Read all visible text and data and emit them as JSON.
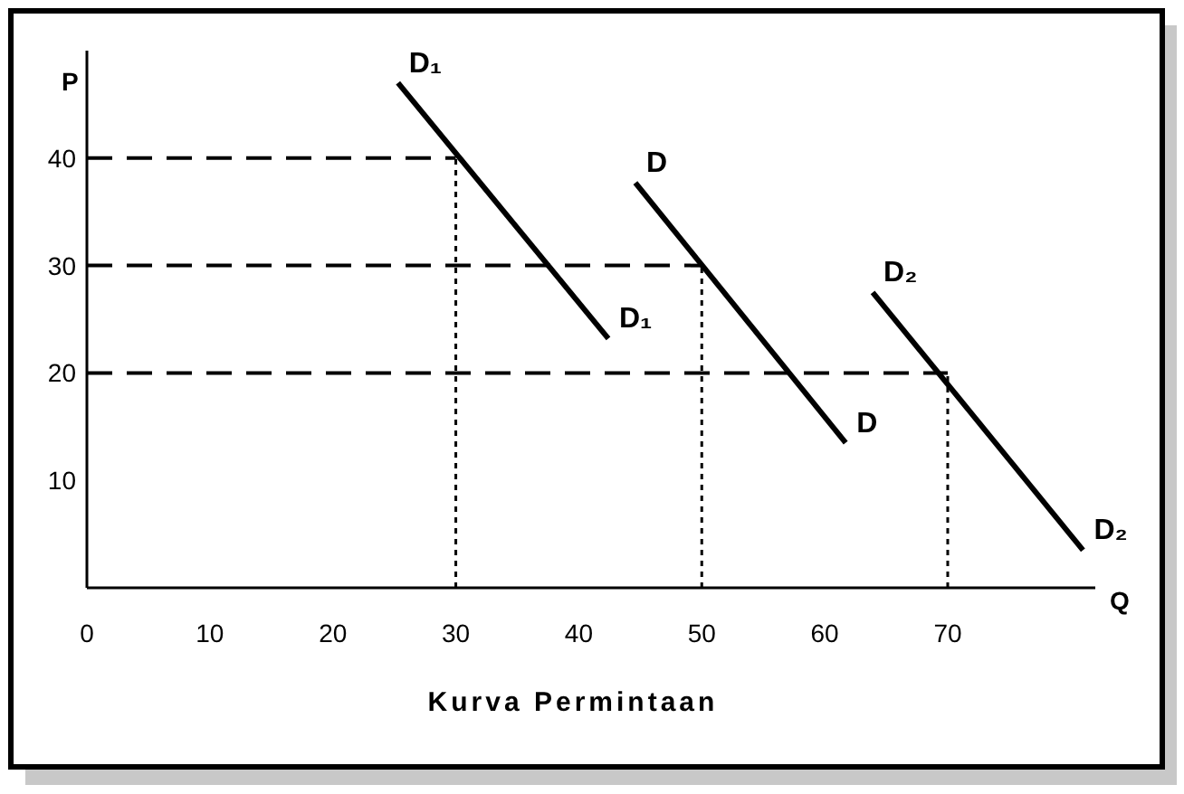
{
  "chart_data": {
    "type": "line",
    "title": "Kurva Permintaan",
    "xlabel": "Q",
    "ylabel": "P",
    "xlim": [
      0,
      82
    ],
    "ylim": [
      0,
      50
    ],
    "xticks": [
      0,
      10,
      20,
      30,
      40,
      50,
      60,
      70
    ],
    "yticks": [
      10,
      20,
      30,
      40
    ],
    "grid": false,
    "marker": "none",
    "series": [
      {
        "color": "#000000",
        "x": [
          25.3,
          42.4
        ],
        "values": [
          47,
          23.2
        ]
      },
      {
        "color": "#000000",
        "x": [
          44.6,
          61.7
        ],
        "values": [
          37.7,
          13.5
        ]
      },
      {
        "color": "#000000",
        "x": [
          63.9,
          81
        ],
        "values": [
          27.5,
          3.5
        ]
      },
      {
        "color": "#000000",
        "line_style": "dashed",
        "x": [
          0,
          30
        ],
        "values": [
          40,
          40
        ]
      },
      {
        "color": "#000000",
        "line_style": "dashed",
        "x": [
          0,
          50
        ],
        "values": [
          30,
          30
        ]
      },
      {
        "color": "#000000",
        "line_style": "dashed",
        "x": [
          0,
          70
        ],
        "values": [
          20,
          20
        ]
      },
      {
        "color": "#000000",
        "line_style": "dotted",
        "x": [
          30,
          30
        ],
        "values": [
          0,
          40
        ]
      },
      {
        "color": "#000000",
        "line_style": "dotted",
        "x": [
          50,
          50
        ],
        "values": [
          0,
          30
        ]
      },
      {
        "color": "#000000",
        "line_style": "dotted",
        "x": [
          70,
          70
        ],
        "values": [
          0,
          20
        ]
      }
    ],
    "annotations": [
      {
        "text": "D₁",
        "x": 25.3,
        "y": 47
      },
      {
        "text": "D₁",
        "x": 42.4,
        "y": 23.2
      },
      {
        "text": "D",
        "x": 44.6,
        "y": 37.7
      },
      {
        "text": "D",
        "x": 61.7,
        "y": 13.5
      },
      {
        "text": "D₂",
        "x": 63.9,
        "y": 27.5
      },
      {
        "text": "D₂",
        "x": 81,
        "y": 3.5
      }
    ]
  }
}
